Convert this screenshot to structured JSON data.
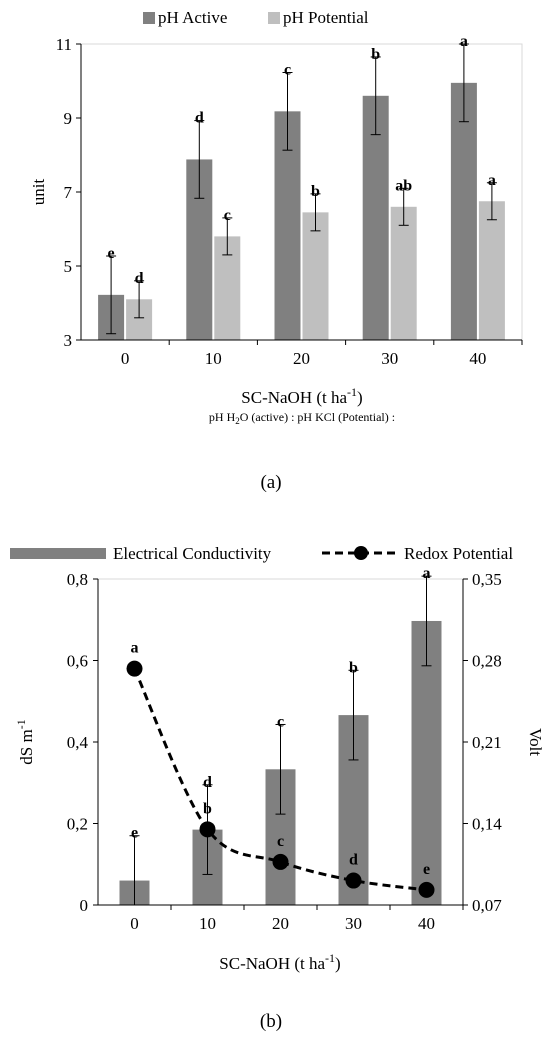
{
  "chart_data": [
    {
      "type": "bar",
      "panel_label": "(a)",
      "categories": [
        "0",
        "10",
        "20",
        "30",
        "40"
      ],
      "xlabel": "SC-NaOH (t ha",
      "xlabel_sup": "-1",
      "xlabel_end": ")",
      "ylabel": "unit",
      "ylim": [
        3,
        11
      ],
      "yticks": [
        "3",
        "5",
        "7",
        "9",
        "11"
      ],
      "grid": false,
      "legend_position": "top",
      "note": {
        "part1": "pH H",
        "sub": "2",
        "part2": "O (active) : pH KCl (Potential) :"
      },
      "series": [
        {
          "name": "pH Active",
          "color": "#808080",
          "values": [
            4.22,
            7.88,
            9.18,
            9.6,
            9.95
          ],
          "errors": [
            1.05,
            1.05,
            1.05,
            1.05,
            1.05
          ],
          "letters": [
            "e",
            "d",
            "c",
            "b",
            "a"
          ]
        },
        {
          "name": "pH Potential",
          "color": "#bfbfbf",
          "values": [
            4.1,
            5.8,
            6.45,
            6.6,
            6.75
          ],
          "errors": [
            0.5,
            0.5,
            0.5,
            0.5,
            0.5
          ],
          "letters": [
            "d",
            "c",
            "b",
            "ab",
            "a"
          ]
        }
      ]
    },
    {
      "type": "bar",
      "panel_label": "(b)",
      "categories": [
        "0",
        "10",
        "20",
        "30",
        "40"
      ],
      "xlabel": "SC-NaOH (t ha",
      "xlabel_sup": "-1",
      "xlabel_end": ")",
      "ylabel": "dS m",
      "ylabel_sup": "-1",
      "ylim": [
        0,
        0.8
      ],
      "yticks": [
        "0",
        "0,2",
        "0,4",
        "0,6",
        "0,8"
      ],
      "y2label": "Volt",
      "y2lim": [
        0.07,
        0.35
      ],
      "y2ticks": [
        "0,07",
        "0,14",
        "0,21",
        "0,28",
        "0,35"
      ],
      "grid": false,
      "legend_position": "top",
      "series": [
        {
          "name": "Electrical Conductivity",
          "color": "#808080",
          "values": [
            0.06,
            0.185,
            0.333,
            0.466,
            0.697
          ],
          "errors": [
            0.11,
            0.11,
            0.11,
            0.11,
            0.11
          ],
          "letters": [
            "e",
            "d",
            "c",
            "b",
            "a"
          ],
          "axis": "left"
        },
        {
          "name": "Redox Potential",
          "type": "line",
          "color": "#000000",
          "values": [
            0.273,
            0.135,
            0.107,
            0.091,
            0.083
          ],
          "letters": [
            "a",
            "b",
            "c",
            "d",
            "e"
          ],
          "axis": "right"
        }
      ]
    }
  ]
}
